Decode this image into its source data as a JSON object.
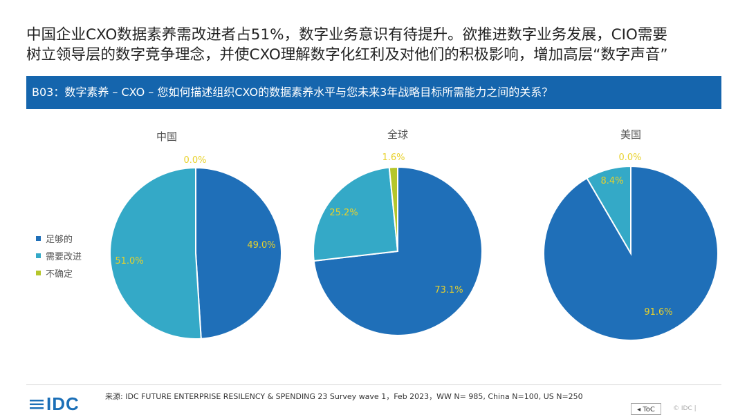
{
  "headline": {
    "line1": "中国企业CXO数据素养需改进者占51%，数字业务意识有待提升。欲推进数字业务发展，CIO需要",
    "line2": "树立领导层的数字竞争理念，并使CXO理解数字化红利及对他们的积极影响，增加高层“数字声音”"
  },
  "question": "B03：数字素养 – CXO – 您如何描述组织CXO的数据素养水平与您未来3年战略目标所需能力之间的关系？",
  "legend": [
    {
      "label": "足够的",
      "color": "#1f6fb8"
    },
    {
      "label": "需要改进",
      "color": "#34a9c7"
    },
    {
      "label": "不确定",
      "color": "#b5c62b"
    }
  ],
  "chart_data": [
    {
      "type": "pie",
      "title": "中国",
      "categories": [
        "足够的",
        "需要改进",
        "不确定"
      ],
      "values": [
        49.0,
        51.0,
        0.0
      ],
      "labels": [
        "49.0%",
        "51.0%",
        "0.0%"
      ]
    },
    {
      "type": "pie",
      "title": "全球",
      "categories": [
        "足够的",
        "需要改进",
        "不确定"
      ],
      "values": [
        73.1,
        25.2,
        1.6
      ],
      "labels": [
        "73.1%",
        "25.2%",
        "1.6%"
      ]
    },
    {
      "type": "pie",
      "title": "美国",
      "categories": [
        "足够的",
        "需要改进",
        "不确定"
      ],
      "values": [
        91.6,
        8.4,
        0.0
      ],
      "labels": [
        "91.6%",
        "8.4%",
        "0.0%"
      ]
    }
  ],
  "footer": {
    "logo": "IDC",
    "source": "来源: IDC FUTURE ENTERPRISE RESILENCY & SPENDING 23 Survey wave 1，Feb 2023，WW  N= 985, China N=100, US N=250",
    "toc_label": "◂ ToC",
    "copyright": "© IDC |"
  }
}
